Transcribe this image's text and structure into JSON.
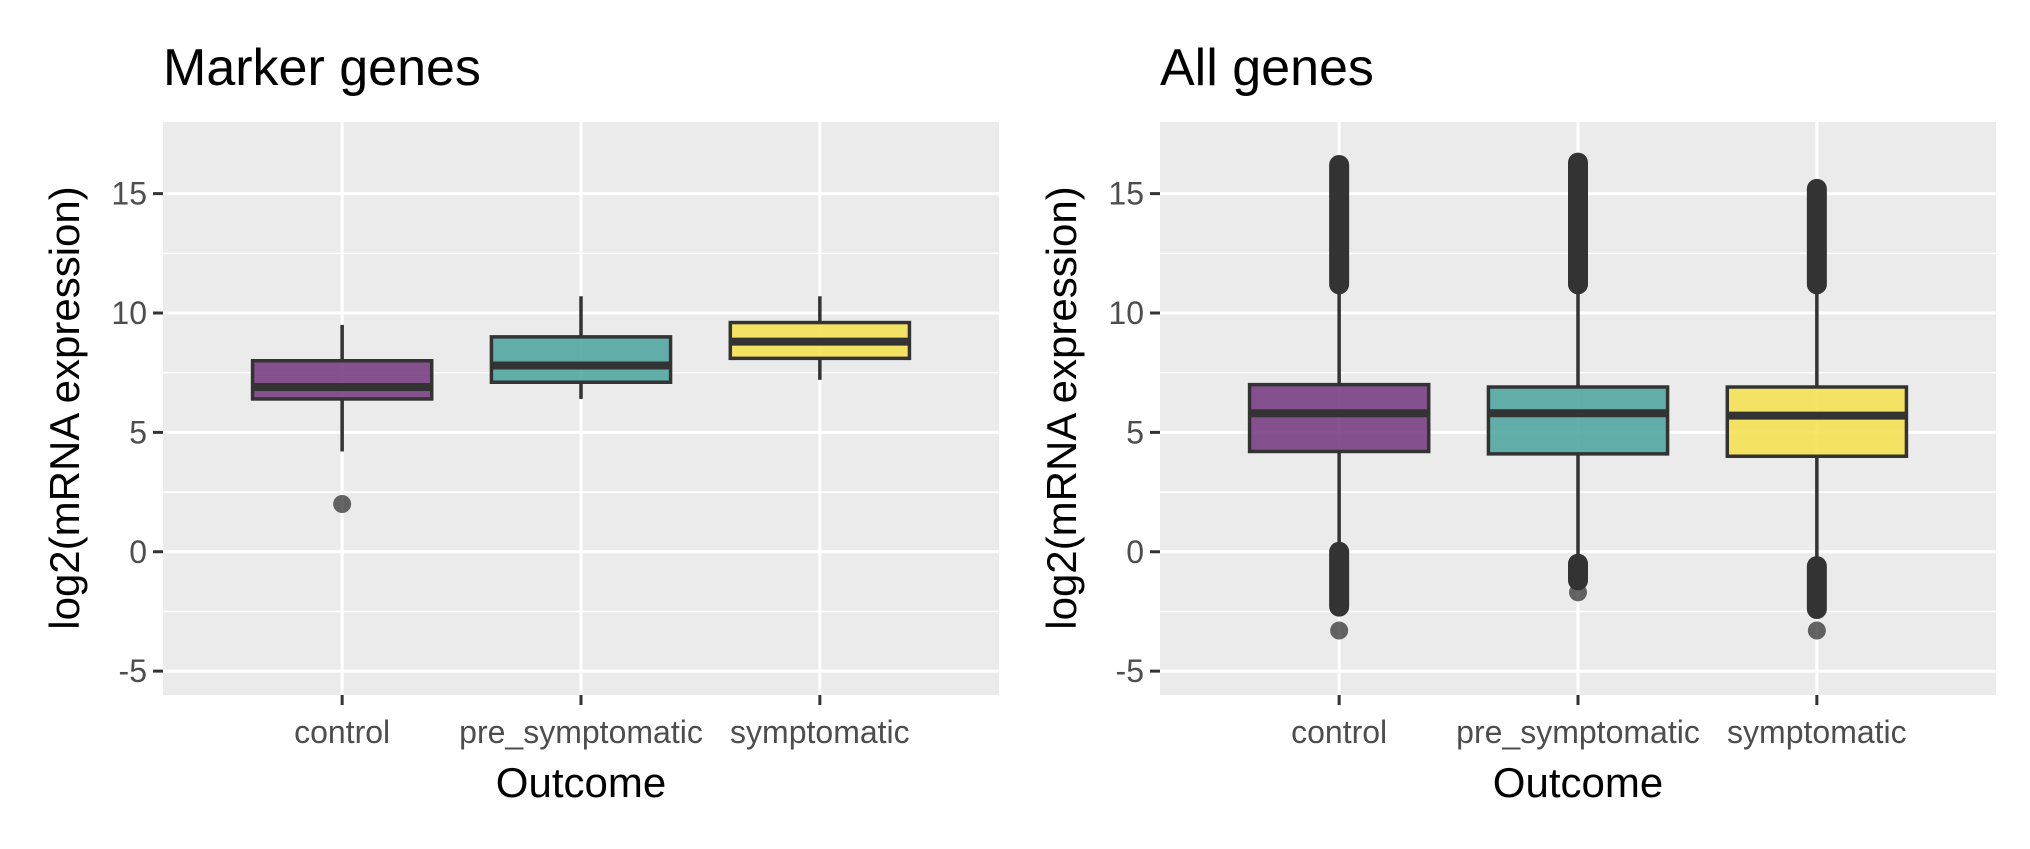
{
  "colors": {
    "panel_bg": "#EBEBEB",
    "grid": "#FFFFFF",
    "box_stroke": "#333333",
    "tick": "#333333",
    "fills": [
      "#7A3F84",
      "#52A6A0",
      "#F5E154"
    ]
  },
  "chart_data": [
    {
      "type": "box",
      "title": "Marker genes",
      "xlabel": "Outcome",
      "ylabel": "log2(mRNA expression)",
      "ylim": [
        -6,
        18
      ],
      "yticks": [
        -5,
        0,
        5,
        10,
        15
      ],
      "ytick_labels": [
        "-5",
        "0",
        "5",
        "10",
        "15"
      ],
      "grid": true,
      "categories": [
        "control",
        "pre_symptomatic",
        "symptomatic"
      ],
      "boxes": [
        {
          "category": "control",
          "q1": 6.4,
          "median": 6.9,
          "q3": 8.0,
          "whisker_low": 4.2,
          "whisker_high": 9.5,
          "outliers": [
            2.0
          ]
        },
        {
          "category": "pre_symptomatic",
          "q1": 7.1,
          "median": 7.8,
          "q3": 9.0,
          "whisker_low": 6.4,
          "whisker_high": 10.7,
          "outliers": []
        },
        {
          "category": "symptomatic",
          "q1": 8.1,
          "median": 8.8,
          "q3": 9.6,
          "whisker_low": 7.2,
          "whisker_high": 10.7,
          "outliers": []
        }
      ]
    },
    {
      "type": "box",
      "title": "All genes",
      "xlabel": "Outcome",
      "ylabel": "log2(mRNA expression)",
      "ylim": [
        -6,
        18
      ],
      "yticks": [
        -5,
        0,
        5,
        10,
        15
      ],
      "ytick_labels": [
        "-5",
        "0",
        "5",
        "10",
        "15"
      ],
      "grid": true,
      "categories": [
        "control",
        "pre_symptomatic",
        "symptomatic"
      ],
      "boxes": [
        {
          "category": "control",
          "q1": 4.2,
          "median": 5.8,
          "q3": 7.0,
          "whisker_low": 0.0,
          "whisker_high": 11.2,
          "outlier_band_high": [
            11.2,
            16.2
          ],
          "outlier_band_low": [
            -2.3,
            0.0
          ],
          "outliers": [
            -3.3
          ]
        },
        {
          "category": "pre_symptomatic",
          "q1": 4.1,
          "median": 5.8,
          "q3": 6.9,
          "whisker_low": -0.5,
          "whisker_high": 11.2,
          "outlier_band_high": [
            11.2,
            16.3
          ],
          "outlier_band_low": [
            -1.2,
            -0.5
          ],
          "outliers": [
            -1.7
          ]
        },
        {
          "category": "symptomatic",
          "q1": 4.0,
          "median": 5.7,
          "q3": 6.9,
          "whisker_low": -0.6,
          "whisker_high": 11.2,
          "outlier_band_high": [
            11.2,
            15.2
          ],
          "outlier_band_low": [
            -2.4,
            -0.6
          ],
          "outliers": [
            -3.3
          ]
        }
      ]
    }
  ]
}
